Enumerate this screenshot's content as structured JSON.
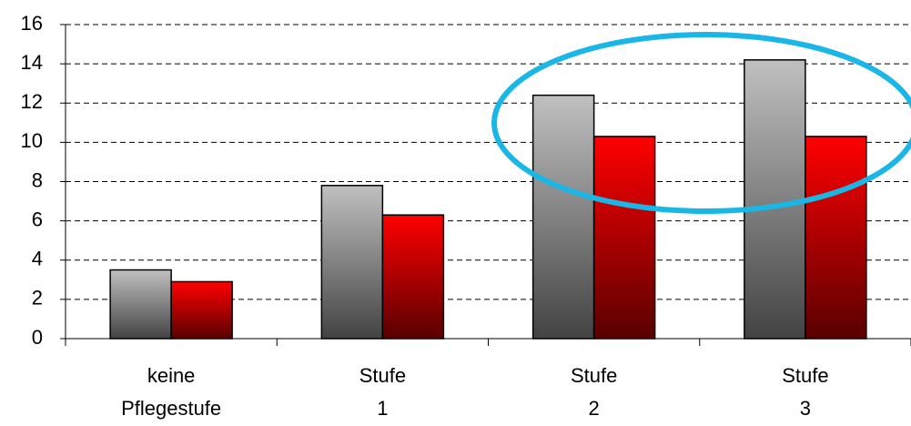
{
  "chart_data": {
    "type": "bar",
    "categories": [
      "keine Pflegestufe",
      "Stufe 1",
      "Stufe 2",
      "Stufe 3"
    ],
    "series": [
      {
        "color": "#c0c0c0",
        "values": [
          3.5,
          7.8,
          12.4,
          14.2
        ]
      },
      {
        "color": "#ff0000",
        "values": [
          2.9,
          6.3,
          10.3,
          10.3
        ]
      }
    ],
    "ylim": [
      0,
      16
    ],
    "yticks": [
      0,
      2,
      4,
      6,
      8,
      10,
      12,
      14,
      16
    ],
    "grid": true
  }
}
